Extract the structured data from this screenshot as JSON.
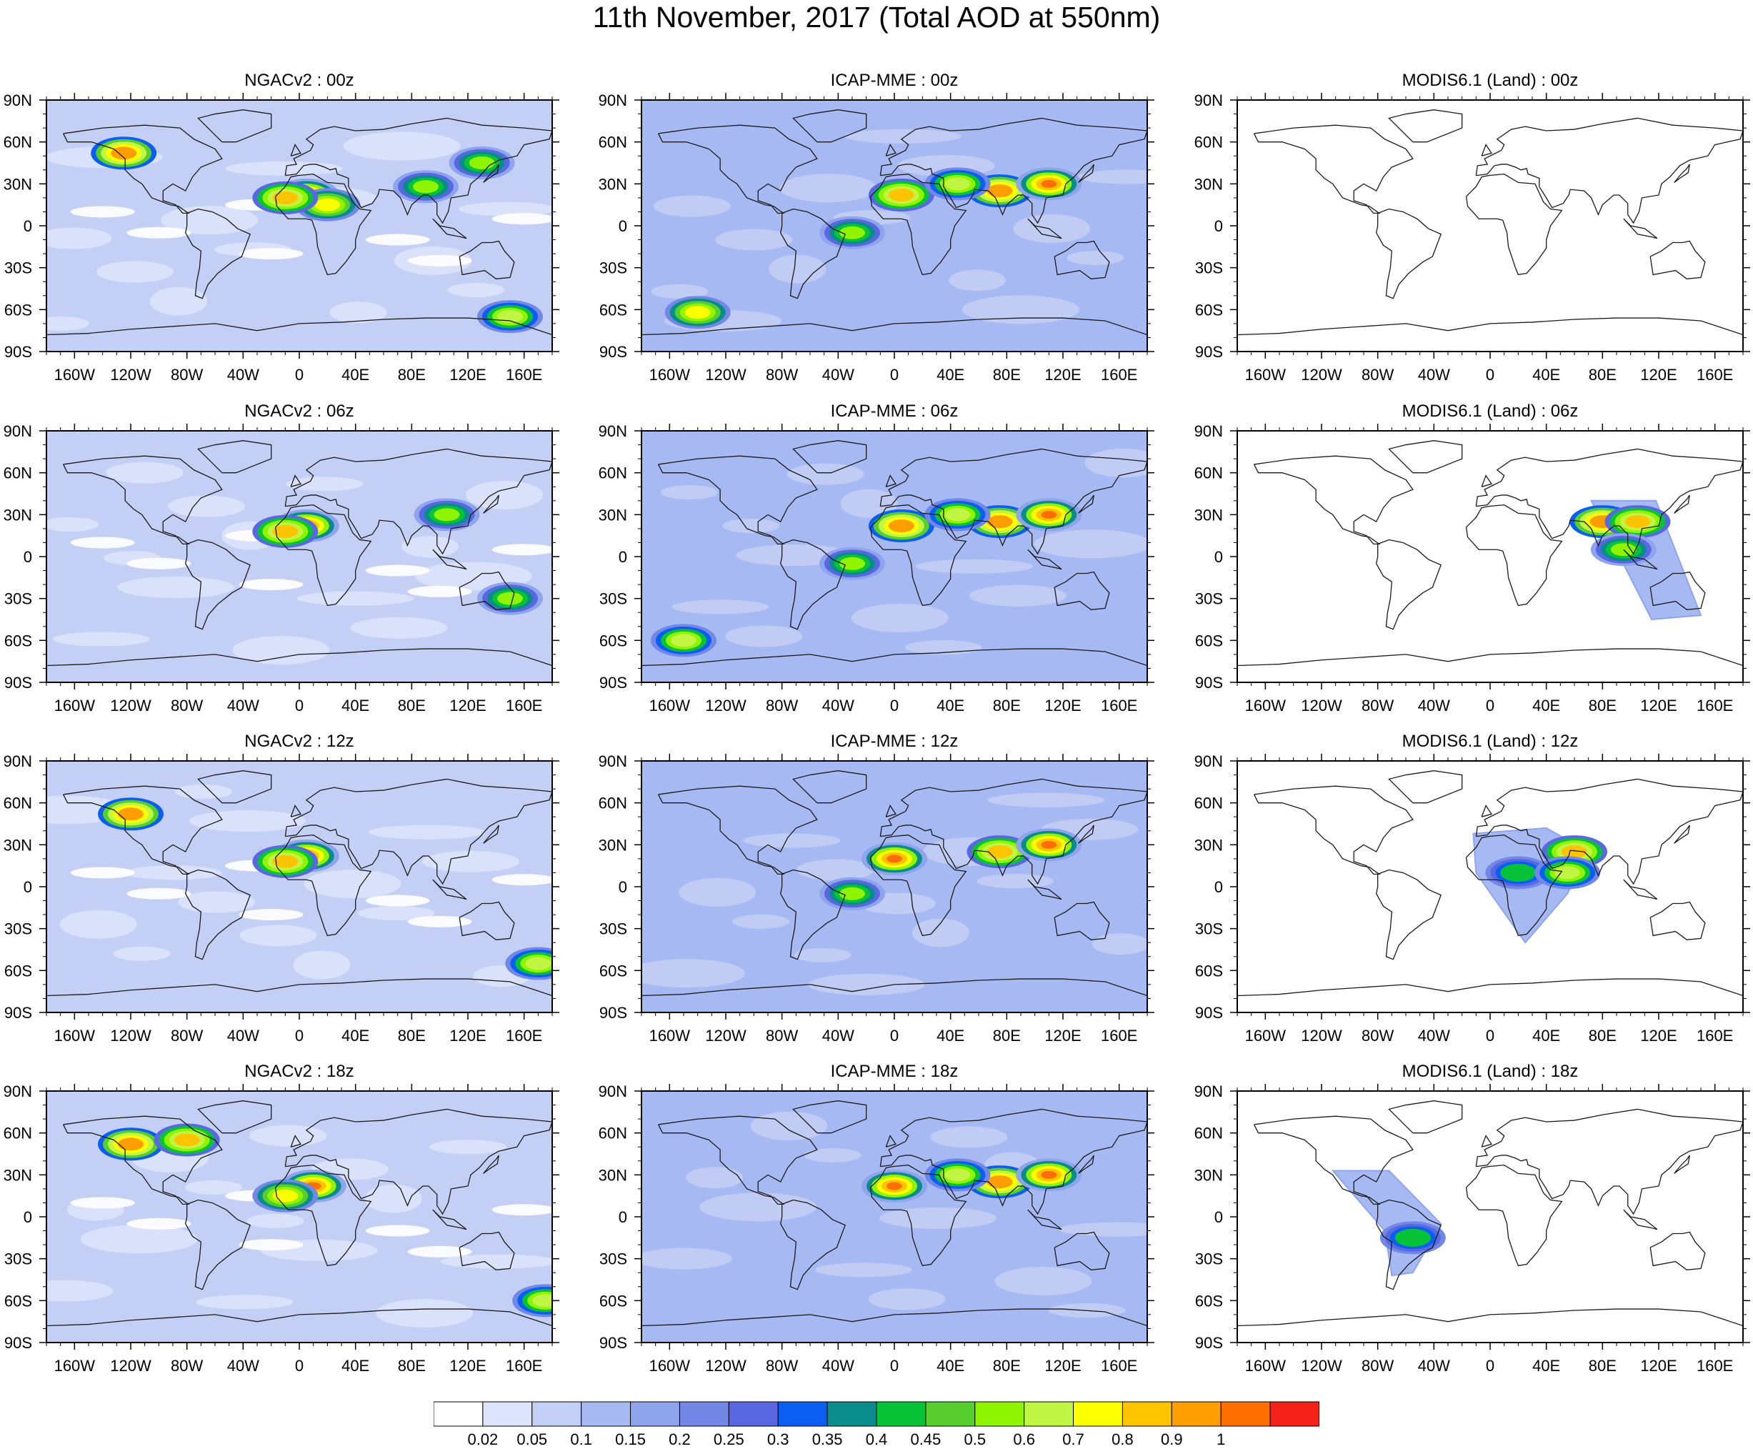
{
  "title": "11th November, 2017 (Total AOD at 550nm)",
  "colors": {
    "ocean_background": "#c4cff5",
    "low_aod": "#dde4fb",
    "moderate": "#8ea4ec",
    "high": "#55ce2e",
    "very_high": "#f5221a",
    "coastline": "#1a1a1a"
  },
  "chart_data": [
    {
      "type": "heatmap",
      "title": "NGACv2 : 00z",
      "model": "NGACv2",
      "time": "00z",
      "coverage": "global"
    },
    {
      "type": "heatmap",
      "title": "ICAP-MME : 00z",
      "model": "ICAP-MME",
      "time": "00z",
      "coverage": "global"
    },
    {
      "type": "heatmap",
      "title": "MODIS6.1 (Land) : 00z",
      "model": "MODIS6.1 (Land)",
      "time": "00z",
      "coverage": "none"
    },
    {
      "type": "heatmap",
      "title": "NGACv2 : 06z",
      "model": "NGACv2",
      "time": "06z",
      "coverage": "global"
    },
    {
      "type": "heatmap",
      "title": "ICAP-MME : 06z",
      "model": "ICAP-MME",
      "time": "06z",
      "coverage": "global"
    },
    {
      "type": "heatmap",
      "title": "MODIS6.1 (Land) : 06z",
      "model": "MODIS6.1 (Land)",
      "time": "06z",
      "coverage": "swath",
      "swath_lonlat": [
        [
          72,
          40
        ],
        [
          118,
          40
        ],
        [
          150,
          -42
        ],
        [
          115,
          -45
        ]
      ]
    },
    {
      "type": "heatmap",
      "title": "NGACv2 : 12z",
      "model": "NGACv2",
      "time": "12z",
      "coverage": "global"
    },
    {
      "type": "heatmap",
      "title": "ICAP-MME : 12z",
      "model": "ICAP-MME",
      "time": "12z",
      "coverage": "global"
    },
    {
      "type": "heatmap",
      "title": "MODIS6.1 (Land) : 12z",
      "model": "MODIS6.1 (Land)",
      "time": "12z",
      "coverage": "swath",
      "swath_lonlat": [
        [
          -12,
          38
        ],
        [
          40,
          42
        ],
        [
          70,
          25
        ],
        [
          55,
          -5
        ],
        [
          25,
          -40
        ],
        [
          -10,
          10
        ]
      ]
    },
    {
      "type": "heatmap",
      "title": "NGACv2 : 18z",
      "model": "NGACv2",
      "time": "18z",
      "coverage": "global"
    },
    {
      "type": "heatmap",
      "title": "ICAP-MME : 18z",
      "model": "ICAP-MME",
      "time": "18z",
      "coverage": "global"
    },
    {
      "type": "heatmap",
      "title": "MODIS6.1 (Land) : 18z",
      "model": "MODIS6.1 (Land)",
      "time": "18z",
      "coverage": "swath",
      "swath_lonlat": [
        [
          -112,
          33
        ],
        [
          -72,
          33
        ],
        [
          -35,
          -5
        ],
        [
          -55,
          -40
        ],
        [
          -70,
          -42
        ],
        [
          -75,
          -10
        ]
      ]
    }
  ],
  "axes": {
    "x_ticks": [
      "160W",
      "120W",
      "80W",
      "40W",
      "0",
      "40E",
      "80E",
      "120E",
      "160E"
    ],
    "x_tick_values": [
      -160,
      -120,
      -80,
      -40,
      0,
      40,
      80,
      120,
      160
    ],
    "y_ticks": [
      "90N",
      "60N",
      "30N",
      "0",
      "30S",
      "60S",
      "90S"
    ],
    "y_tick_values": [
      90,
      60,
      30,
      0,
      -30,
      -60,
      -90
    ],
    "xlim": [
      -180,
      180
    ],
    "ylim": [
      -90,
      90
    ]
  },
  "colorbar": {
    "labels": [
      "0.02",
      "0.05",
      "0.1",
      "0.15",
      "0.2",
      "0.25",
      "0.3",
      "0.35",
      "0.4",
      "0.45",
      "0.5",
      "0.6",
      "0.7",
      "0.8",
      "0.9",
      "1"
    ],
    "colors": [
      "#ffffff",
      "#dde4fb",
      "#c4cff5",
      "#a7b9f2",
      "#8ea4ec",
      "#7388e6",
      "#5a67e2",
      "#0b5ef2",
      "#0a8c8c",
      "#08c238",
      "#55ce2e",
      "#8ff400",
      "#c1f543",
      "#fbff00",
      "#fec400",
      "#ff9e00",
      "#ff6e00",
      "#f5221a"
    ]
  },
  "hotspots": [
    {
      "panel": 0,
      "lon": 5,
      "lat": 22,
      "level": 1.0
    },
    {
      "panel": 0,
      "lon": 20,
      "lat": 15,
      "level": 0.7
    },
    {
      "panel": 0,
      "lon": -10,
      "lat": 20,
      "level": 0.8
    },
    {
      "panel": 0,
      "lon": 90,
      "lat": 28,
      "level": 0.5
    },
    {
      "panel": 0,
      "lon": -125,
      "lat": 52,
      "level": 0.9
    },
    {
      "panel": 0,
      "lon": 130,
      "lat": 45,
      "level": 0.5
    },
    {
      "panel": 0,
      "lon": 150,
      "lat": -65,
      "level": 0.6
    },
    {
      "panel": 1,
      "lon": 5,
      "lat": 22,
      "level": 0.8
    },
    {
      "panel": 1,
      "lon": 75,
      "lat": 25,
      "level": 0.9
    },
    {
      "panel": 1,
      "lon": 110,
      "lat": 30,
      "level": 1.0
    },
    {
      "panel": 1,
      "lon": 45,
      "lat": 30,
      "level": 0.6
    },
    {
      "panel": 1,
      "lon": -30,
      "lat": -5,
      "level": 0.5
    },
    {
      "panel": 1,
      "lon": -140,
      "lat": -62,
      "level": 0.7
    },
    {
      "panel": 3,
      "lon": 5,
      "lat": 22,
      "level": 1.0
    },
    {
      "panel": 3,
      "lon": -10,
      "lat": 18,
      "level": 0.8
    },
    {
      "panel": 3,
      "lon": 105,
      "lat": 30,
      "level": 0.5
    },
    {
      "panel": 3,
      "lon": 150,
      "lat": -30,
      "level": 0.5
    },
    {
      "panel": 4,
      "lon": 5,
      "lat": 22,
      "level": 0.9
    },
    {
      "panel": 4,
      "lon": 75,
      "lat": 25,
      "level": 0.9
    },
    {
      "panel": 4,
      "lon": 110,
      "lat": 30,
      "level": 1.0
    },
    {
      "panel": 4,
      "lon": 45,
      "lat": 30,
      "level": 0.6
    },
    {
      "panel": 4,
      "lon": -30,
      "lat": -5,
      "level": 0.5
    },
    {
      "panel": 4,
      "lon": -150,
      "lat": -60,
      "level": 0.6
    },
    {
      "panel": 5,
      "lon": 80,
      "lat": 25,
      "level": 0.9
    },
    {
      "panel": 5,
      "lon": 105,
      "lat": 25,
      "level": 0.8
    },
    {
      "panel": 5,
      "lon": 95,
      "lat": 5,
      "level": 0.5
    },
    {
      "panel": 6,
      "lon": 5,
      "lat": 22,
      "level": 1.0
    },
    {
      "panel": 6,
      "lon": -10,
      "lat": 18,
      "level": 0.8
    },
    {
      "panel": 6,
      "lon": -120,
      "lat": 52,
      "level": 0.9
    },
    {
      "panel": 6,
      "lon": 170,
      "lat": -55,
      "level": 0.6
    },
    {
      "panel": 7,
      "lon": 0,
      "lat": 20,
      "level": 1.0
    },
    {
      "panel": 7,
      "lon": 75,
      "lat": 25,
      "level": 0.8
    },
    {
      "panel": 7,
      "lon": 110,
      "lat": 30,
      "level": 1.0
    },
    {
      "panel": 7,
      "lon": -30,
      "lat": -5,
      "level": 0.5
    },
    {
      "panel": 8,
      "lon": 60,
      "lat": 25,
      "level": 0.8
    },
    {
      "panel": 8,
      "lon": 20,
      "lat": 10,
      "level": 0.4
    },
    {
      "panel": 8,
      "lon": 55,
      "lat": 10,
      "level": 0.6
    },
    {
      "panel": 9,
      "lon": 10,
      "lat": 22,
      "level": 1.0
    },
    {
      "panel": 9,
      "lon": -10,
      "lat": 15,
      "level": 0.7
    },
    {
      "panel": 9,
      "lon": -120,
      "lat": 52,
      "level": 0.9
    },
    {
      "panel": 9,
      "lon": -80,
      "lat": 55,
      "level": 0.8
    },
    {
      "panel": 9,
      "lon": 175,
      "lat": -60,
      "level": 0.6
    },
    {
      "panel": 10,
      "lon": 0,
      "lat": 22,
      "level": 1.0
    },
    {
      "panel": 10,
      "lon": 75,
      "lat": 25,
      "level": 0.9
    },
    {
      "panel": 10,
      "lon": 110,
      "lat": 30,
      "level": 1.0
    },
    {
      "panel": 10,
      "lon": 45,
      "lat": 30,
      "level": 0.6
    },
    {
      "panel": 11,
      "lon": -55,
      "lat": -15,
      "level": 0.4
    }
  ]
}
